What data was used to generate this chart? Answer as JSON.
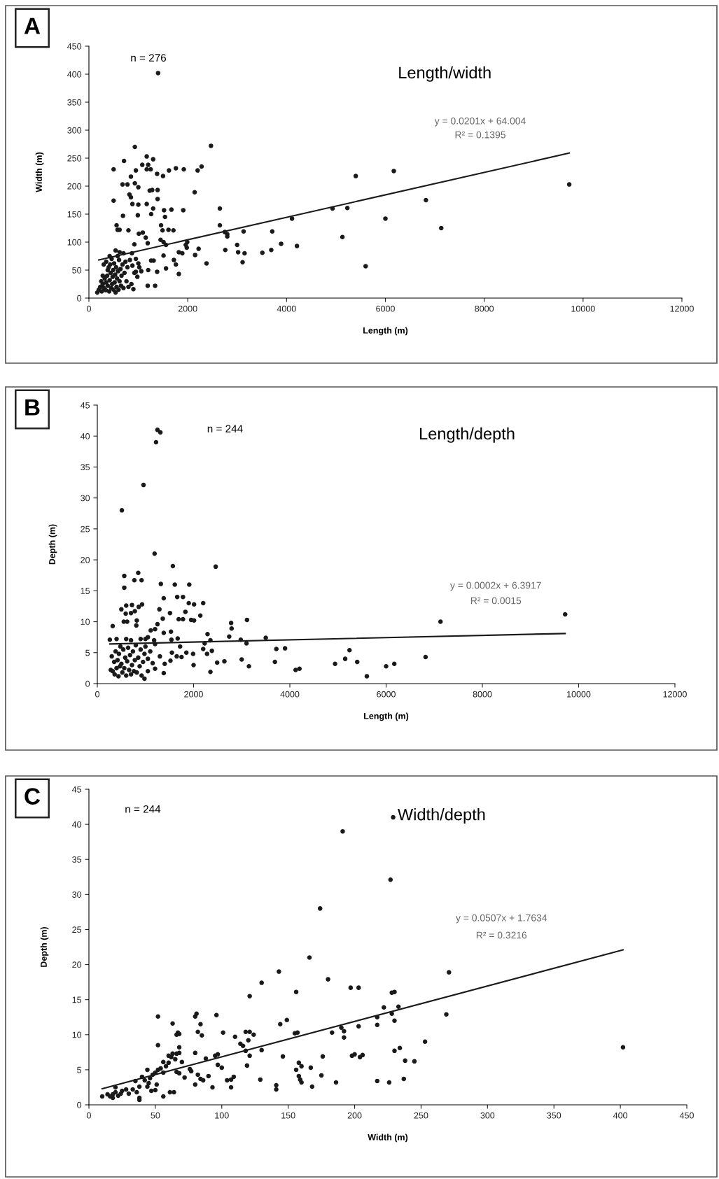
{
  "chart_data": [
    {
      "type": "scatter",
      "title": "Length/width",
      "xlabel": "Length (m)",
      "ylabel": "Width (m)",
      "annotations": [
        "A",
        "n = 276",
        "y = 0.0201x + 64.004",
        "R² = 0.1395"
      ],
      "xlim": [
        0,
        12000
      ],
      "ylim": [
        0,
        450
      ],
      "xticks": [
        0,
        2000,
        4000,
        6000,
        8000,
        10000,
        12000
      ],
      "yticks": [
        0,
        50,
        100,
        150,
        200,
        250,
        300,
        350,
        400,
        450
      ],
      "series": [
        {
          "marker": "circle",
          "color": "#1a1a1a",
          "x": [
            1400,
            930,
            2470,
            1170,
            1300,
            710,
            1080,
            1200,
            500,
            1170,
            1250,
            1380,
            1500,
            1620,
            1760,
            1920,
            2200,
            2280,
            950,
            850,
            780,
            680,
            930,
            1000,
            1230,
            1280,
            1390,
            2140,
            820,
            850,
            500,
            1390,
            1170,
            880,
            1000,
            1300,
            1260,
            1520,
            1670,
            1540,
            1910,
            2650,
            690,
            990,
            1610,
            560,
            580,
            620,
            800,
            1460,
            1490,
            1710,
            1010,
            1090,
            1150,
            920,
            1190,
            1450,
            1510,
            1560,
            1990,
            1960,
            1980,
            2650,
            2750,
            2800,
            2800,
            3130,
            3710,
            4110,
            4930,
            5230,
            5400,
            6170,
            6820,
            6000,
            7130,
            9720,
            5130,
            5600,
            3890,
            4210,
            3510,
            3690,
            3000,
            3020,
            3150,
            2760,
            3110,
            2380,
            2220,
            2150,
            1820,
            1890,
            1720,
            1760,
            1820,
            1510,
            1560,
            1310,
            1260,
            1200,
            1380,
            1190,
            1340,
            1060,
            950,
            870,
            170,
            200,
            230,
            260,
            280,
            300,
            320,
            340,
            350,
            370,
            380,
            400,
            410,
            420,
            430,
            440,
            450,
            460,
            470,
            480,
            490,
            500,
            510,
            520,
            530,
            540,
            550,
            560,
            570,
            580,
            590,
            600,
            610,
            620,
            640,
            650,
            660,
            680,
            700,
            720,
            740,
            760,
            780,
            800,
            830,
            860,
            880,
            900,
            920,
            950,
            980,
            1000,
            1020,
            300,
            350,
            280,
            620,
            700,
            420,
            540,
            250,
            380
          ],
          "values": [
            402,
            270,
            272,
            253,
            248,
            245,
            238,
            238,
            230,
            230,
            230,
            222,
            218,
            228,
            232,
            230,
            228,
            235,
            228,
            217,
            203,
            203,
            205,
            198,
            192,
            193,
            193,
            189,
            185,
            180,
            174,
            177,
            168,
            168,
            167,
            160,
            150,
            157,
            158,
            145,
            157,
            160,
            147,
            148,
            122,
            130,
            122,
            122,
            121,
            130,
            121,
            121,
            115,
            117,
            108,
            96,
            98,
            104,
            100,
            95,
            100,
            95,
            90,
            130,
            118,
            114,
            110,
            119,
            119,
            142,
            160,
            161,
            218,
            227,
            175,
            142,
            125,
            203,
            109,
            57,
            97,
            93,
            81,
            86,
            95,
            82,
            80,
            86,
            64,
            62,
            88,
            77,
            82,
            80,
            68,
            60,
            43,
            76,
            53,
            67,
            67,
            50,
            47,
            22,
            22,
            48,
            47,
            80,
            10,
            15,
            20,
            12,
            25,
            18,
            35,
            14,
            28,
            40,
            22,
            55,
            12,
            32,
            60,
            45,
            18,
            70,
            25,
            38,
            50,
            15,
            62,
            28,
            42,
            10,
            55,
            20,
            35,
            75,
            48,
            15,
            68,
            30,
            52,
            22,
            40,
            60,
            18,
            45,
            65,
            30,
            55,
            20,
            68,
            25,
            58,
            16,
            45,
            70,
            38,
            62,
            55,
            60,
            65,
            40,
            82,
            80,
            75,
            85,
            30,
            50
          ]
        },
        {
          "type": "line",
          "marker": "none",
          "color": "#1a1a1a",
          "x": [
            200,
            9720
          ],
          "values": [
            68,
            259
          ]
        }
      ]
    },
    {
      "type": "scatter",
      "title": "Length/depth",
      "xlabel": "Length (m)",
      "ylabel": "Depth (m)",
      "annotations": [
        "B",
        "n = 244",
        "y = 0.0002x + 6.3917",
        "R² = 0.0015"
      ],
      "xlim": [
        0,
        12000
      ],
      "ylim": [
        0,
        45
      ],
      "xticks": [
        0,
        2000,
        4000,
        6000,
        8000,
        10000,
        12000
      ],
      "yticks": [
        0,
        5,
        10,
        15,
        20,
        25,
        30,
        35,
        40,
        45
      ],
      "series": [
        {
          "marker": "circle",
          "color": "#1a1a1a",
          "x": [
            1250,
            1310,
            1220,
            960,
            510,
            1190,
            1570,
            2460,
            560,
            770,
            850,
            920,
            560,
            1320,
            1610,
            1910,
            1660,
            1380,
            1780,
            2200,
            1900,
            2010,
            720,
            600,
            860,
            930,
            500,
            1290,
            1510,
            1830,
            2140,
            700,
            780,
            590,
            320,
            550,
            620,
            820,
            810,
            1360,
            1690,
            1780,
            1950,
            2010,
            2780,
            2790,
            3110,
            7130,
            9720,
            1250,
            1110,
            1200,
            1380,
            1530,
            2290,
            2740,
            2980,
            3500,
            2350,
            3100,
            1050,
            900,
            1000,
            1180,
            1540,
            1670,
            1720,
            260,
            400,
            600,
            700,
            2230,
            3720,
            3900,
            5240,
            2200,
            2380,
            2280,
            1850,
            1550,
            1650,
            1300,
            1400,
            1520,
            1750,
            1990,
            2000,
            2350,
            2490,
            2640,
            3000,
            3150,
            3690,
            4120,
            4200,
            4940,
            5150,
            5400,
            5600,
            6000,
            6170,
            6820,
            1380,
            980,
            1200,
            1050,
            280,
            300,
            320,
            350,
            360,
            380,
            400,
            420,
            440,
            450,
            470,
            480,
            500,
            520,
            540,
            560,
            580,
            600,
            620,
            640,
            660,
            680,
            700,
            720,
            740,
            760,
            780,
            800,
            820,
            850,
            880,
            900,
            920,
            950,
            980,
            1000,
            1050,
            1100,
            1150,
            1200
          ],
          "values": [
            41,
            40.6,
            39,
            32.1,
            28,
            21,
            19,
            18.9,
            17.4,
            16.7,
            17.9,
            16.7,
            15.5,
            16.1,
            16,
            16,
            14,
            13.8,
            14,
            13,
            13,
            12.8,
            12.7,
            12.6,
            12.4,
            12.8,
            12,
            12,
            11.4,
            11.6,
            11,
            11.4,
            11.7,
            11.3,
            9.3,
            10,
            10,
            10.2,
            9.4,
            10.5,
            10.4,
            10.4,
            10.3,
            10.2,
            9.8,
            8.9,
            10.3,
            10,
            11.2,
            9.6,
            8.6,
            8.8,
            8.2,
            8.4,
            8,
            7.6,
            7.1,
            7.4,
            7.0,
            6.5,
            7.5,
            7.2,
            7.2,
            7.0,
            7.1,
            7.3,
            6.0,
            7.1,
            7.2,
            7.2,
            7,
            6.5,
            5.6,
            5.7,
            5.4,
            5.6,
            5.3,
            4.8,
            5,
            5,
            4.4,
            4.4,
            3.2,
            3.7,
            4.3,
            4.8,
            3.0,
            1.9,
            3.4,
            3.6,
            3.9,
            2.8,
            3.5,
            2.2,
            2.4,
            3.2,
            4.0,
            3.5,
            1.2,
            2.8,
            3.2,
            4.3,
            1.7,
            0.8,
            2.4,
            2.0,
            2.2,
            4.4,
            2.0,
            3.5,
            1.5,
            5.2,
            2.5,
            3.8,
            1.2,
            4.8,
            2.8,
            6.0,
            3.2,
            1.8,
            5.5,
            2.5,
            4.2,
            1.3,
            3.6,
            5.8,
            2.2,
            4.6,
            1.5,
            3.0,
            5.2,
            2.0,
            3.8,
            6.2,
            1.8,
            4.2,
            2.8,
            5.5,
            1.3,
            3.5,
            4.8,
            6.0,
            4.0,
            5.2,
            3.3,
            6.4
          ]
        },
        {
          "type": "line",
          "marker": "none",
          "color": "#1a1a1a",
          "x": [
            260,
            9720
          ],
          "values": [
            6.4,
            8.1
          ]
        }
      ]
    },
    {
      "type": "scatter",
      "title": "Width/depth",
      "xlabel": "Width (m)",
      "ylabel": "Depth (m)",
      "annotations": [
        "C",
        "n = 244",
        "y = 0.0507x + 1.7634",
        "R² = 0.3216"
      ],
      "xlim": [
        0,
        450
      ],
      "ylim": [
        0,
        45
      ],
      "xticks": [
        0,
        50,
        100,
        150,
        200,
        250,
        300,
        350,
        400,
        450
      ],
      "yticks": [
        0,
        5,
        10,
        15,
        20,
        25,
        30,
        35,
        40,
        45
      ],
      "series": [
        {
          "marker": "circle",
          "color": "#1a1a1a",
          "x": [
            229,
            191,
            227,
            174,
            166,
            271,
            143,
            180,
            130,
            197,
            203,
            156,
            228,
            230,
            121,
            52,
            80,
            81,
            96,
            269,
            233,
            222,
            149,
            144,
            228,
            230,
            217,
            217,
            63,
            84,
            66,
            68,
            67,
            85,
            82,
            101,
            110,
            118,
            121,
            124,
            120,
            155,
            157,
            183,
            190,
            192,
            192,
            203,
            52,
            68,
            114,
            116,
            118,
            130,
            80,
            95,
            97,
            121,
            176,
            146,
            198,
            200,
            204,
            206,
            230,
            234,
            253,
            402,
            238,
            245,
            60,
            63,
            66,
            68,
            62,
            56,
            70,
            60,
            65,
            88,
            97,
            100,
            119,
            156,
            158,
            160,
            167,
            158,
            159,
            160,
            175,
            168,
            186,
            217,
            226,
            237,
            129,
            141,
            141,
            107,
            93,
            104,
            107,
            109,
            80,
            84,
            86,
            90,
            77,
            82,
            61,
            64,
            56,
            44,
            48,
            50,
            52,
            54,
            56,
            58,
            66,
            68,
            72,
            76,
            40,
            42,
            45,
            47,
            50,
            51,
            38,
            35,
            33,
            30,
            36,
            38,
            38,
            28,
            20,
            18,
            16,
            18,
            22,
            24,
            25,
            20,
            10,
            14,
            44,
            46
          ],
          "values": [
            41,
            39,
            32.1,
            28,
            21,
            18.9,
            19,
            17.9,
            17.4,
            16.7,
            16.7,
            16.1,
            16,
            16.1,
            15.5,
            12.6,
            12.6,
            13,
            12.8,
            12.9,
            14,
            13.9,
            12.1,
            11.5,
            13,
            12,
            12.5,
            11.4,
            11.6,
            11.5,
            10,
            10.1,
            10.3,
            9.9,
            10.4,
            10.3,
            9.7,
            10.4,
            10.4,
            10,
            9.2,
            10.2,
            10.3,
            10.3,
            11,
            10.5,
            9.6,
            11.2,
            8.5,
            8.2,
            8.7,
            8.4,
            7.7,
            7.8,
            7.4,
            7,
            7.2,
            7,
            6.9,
            6.9,
            7,
            7.2,
            6.8,
            7.1,
            7.7,
            8.1,
            9.0,
            8.2,
            6.3,
            6.2,
            7,
            7.3,
            7.3,
            7.4,
            6.8,
            6.1,
            6.1,
            6,
            6.5,
            6.6,
            5.7,
            5.3,
            5.6,
            5.0,
            6.0,
            5.5,
            5.3,
            4.1,
            3.6,
            3.2,
            4.2,
            2.6,
            3.2,
            3.4,
            3.2,
            3.7,
            3.6,
            2.8,
            2.2,
            2.5,
            2.5,
            3.5,
            3.6,
            4.0,
            2.9,
            3.7,
            3.5,
            4.1,
            4.8,
            4.3,
            1.8,
            1.8,
            1.2,
            5.0,
            4.3,
            4.6,
            5.0,
            5.2,
            4.6,
            5.5,
            4.7,
            4.5,
            3.9,
            5.1,
            4.0,
            3.5,
            3.1,
            2.0,
            2.1,
            2.9,
            2.6,
            3.4,
            2.2,
            1.6,
            1.8,
            1.0,
            0.7,
            2.2,
            1.8,
            1.5,
            1.2,
            1.0,
            1.3,
            1.6,
            2.0,
            2.5,
            1.2,
            1.5,
            2.6,
            3.8
          ]
        },
        {
          "type": "line",
          "marker": "none",
          "color": "#1a1a1a",
          "x": [
            10,
            402
          ],
          "values": [
            2.3,
            22.1
          ]
        }
      ]
    }
  ]
}
